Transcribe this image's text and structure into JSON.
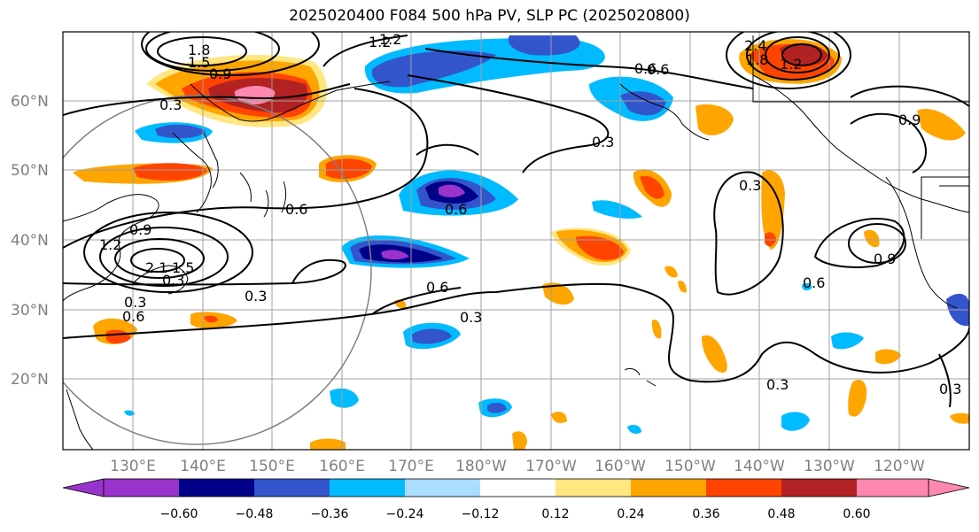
{
  "title": "2025020400 F084 500 hPa PV, SLP PC (2025020800)",
  "lat_labels": [
    "60°N",
    "50°N",
    "40°N",
    "30°N",
    "20°N"
  ],
  "lon_labels": [
    "130°E",
    "140°E",
    "150°E",
    "160°E",
    "170°E",
    "180°W",
    "170°W",
    "160°W",
    "150°W",
    "140°W",
    "130°W",
    "120°W"
  ],
  "colorbar": {
    "colors": [
      "#9933cc",
      "#000088",
      "#3355cc",
      "#00bbff",
      "#aaddff",
      "#ffffff",
      "#ffe680",
      "#ffa500",
      "#ff4400",
      "#b22222",
      "#ff88b0"
    ],
    "ticks": [
      "−0.60",
      "−0.48",
      "−0.36",
      "−0.24",
      "−0.12",
      "0.12",
      "0.24",
      "0.36",
      "0.48",
      "0.60"
    ]
  },
  "contour_labels": [
    "1.8",
    "1.2",
    "1.5",
    "0.9",
    "0.3",
    "1.2",
    "0.6",
    "2.4",
    "1.8",
    "1.2",
    "0.6",
    "0.3",
    "0.9",
    "0.3",
    "0.6",
    "0.9",
    "1.2",
    "2.1",
    "1.5",
    "0.3",
    "0.6",
    "0.3",
    "0.6",
    "0.6",
    "0.3",
    "0.3",
    "0.3",
    "0.6",
    "0.3",
    "0.9"
  ]
}
